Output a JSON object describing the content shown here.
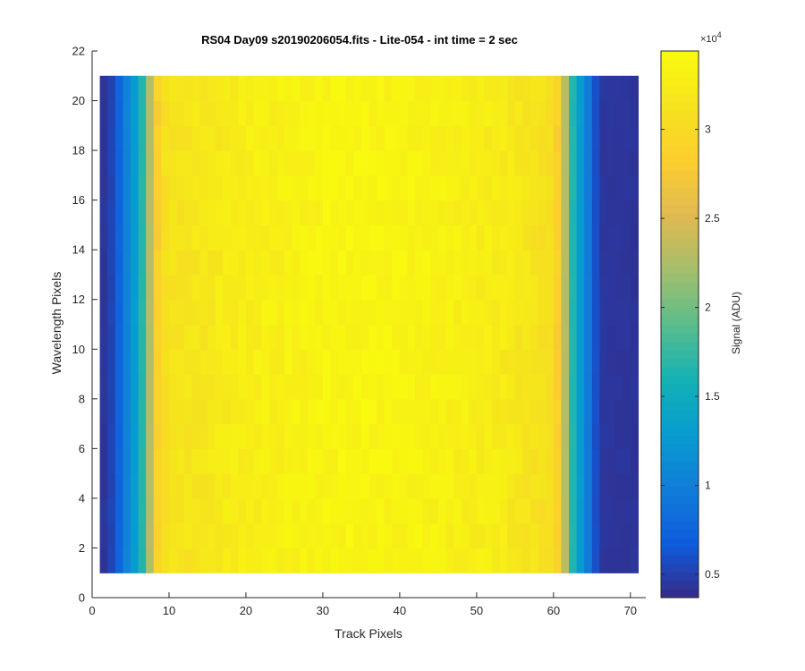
{
  "chart_data": {
    "type": "heatmap",
    "title": "RS04 Day09  s20190206054.fits - Lite-054 - int time = 2 sec",
    "xlabel": "Track Pixels",
    "ylabel": "Wavelength Pixels",
    "xlim": [
      0,
      72
    ],
    "ylim": [
      0,
      22
    ],
    "x_ticks": [
      "0",
      "10",
      "20",
      "30",
      "40",
      "50",
      "60",
      "70"
    ],
    "y_ticks": [
      "0",
      "2",
      "4",
      "6",
      "8",
      "10",
      "12",
      "14",
      "16",
      "18",
      "20",
      "22"
    ],
    "x_range": [
      1,
      71
    ],
    "y_range": [
      1,
      21
    ],
    "colormap": "parula",
    "colorbar": {
      "label": "Signal (ADU)",
      "exponent_base": "×10",
      "exponent_power": "4",
      "ticks": [
        "0.5",
        "1",
        "1.5",
        "2",
        "2.5",
        "3"
      ],
      "tick_values": [
        5000,
        10000,
        15000,
        20000,
        25000,
        30000
      ],
      "clim": [
        3700,
        34400
      ]
    },
    "column_profile": [
      {
        "x": 1,
        "value": 4300
      },
      {
        "x": 2,
        "value": 4500
      },
      {
        "x": 3,
        "value": 6000
      },
      {
        "x": 4,
        "value": 9000
      },
      {
        "x": 5,
        "value": 11800
      },
      {
        "x": 6,
        "value": 14000
      },
      {
        "x": 7,
        "value": 19500
      },
      {
        "x": 8,
        "value": 26500
      },
      {
        "x": 9,
        "value": 30500
      },
      {
        "x": 10,
        "value": 31200
      },
      {
        "x": 15,
        "value": 32000
      },
      {
        "x": 20,
        "value": 32700
      },
      {
        "x": 25,
        "value": 33100
      },
      {
        "x": 30,
        "value": 33400
      },
      {
        "x": 35,
        "value": 33700
      },
      {
        "x": 40,
        "value": 33400
      },
      {
        "x": 45,
        "value": 33200
      },
      {
        "x": 50,
        "value": 32800
      },
      {
        "x": 55,
        "value": 32000
      },
      {
        "x": 58,
        "value": 31200
      },
      {
        "x": 60,
        "value": 30500
      },
      {
        "x": 61,
        "value": 26500
      },
      {
        "x": 62,
        "value": 19500
      },
      {
        "x": 63,
        "value": 14000
      },
      {
        "x": 64,
        "value": 11800
      },
      {
        "x": 65,
        "value": 7500
      },
      {
        "x": 66,
        "value": 4500
      },
      {
        "x": 71,
        "value": 4300
      }
    ]
  }
}
